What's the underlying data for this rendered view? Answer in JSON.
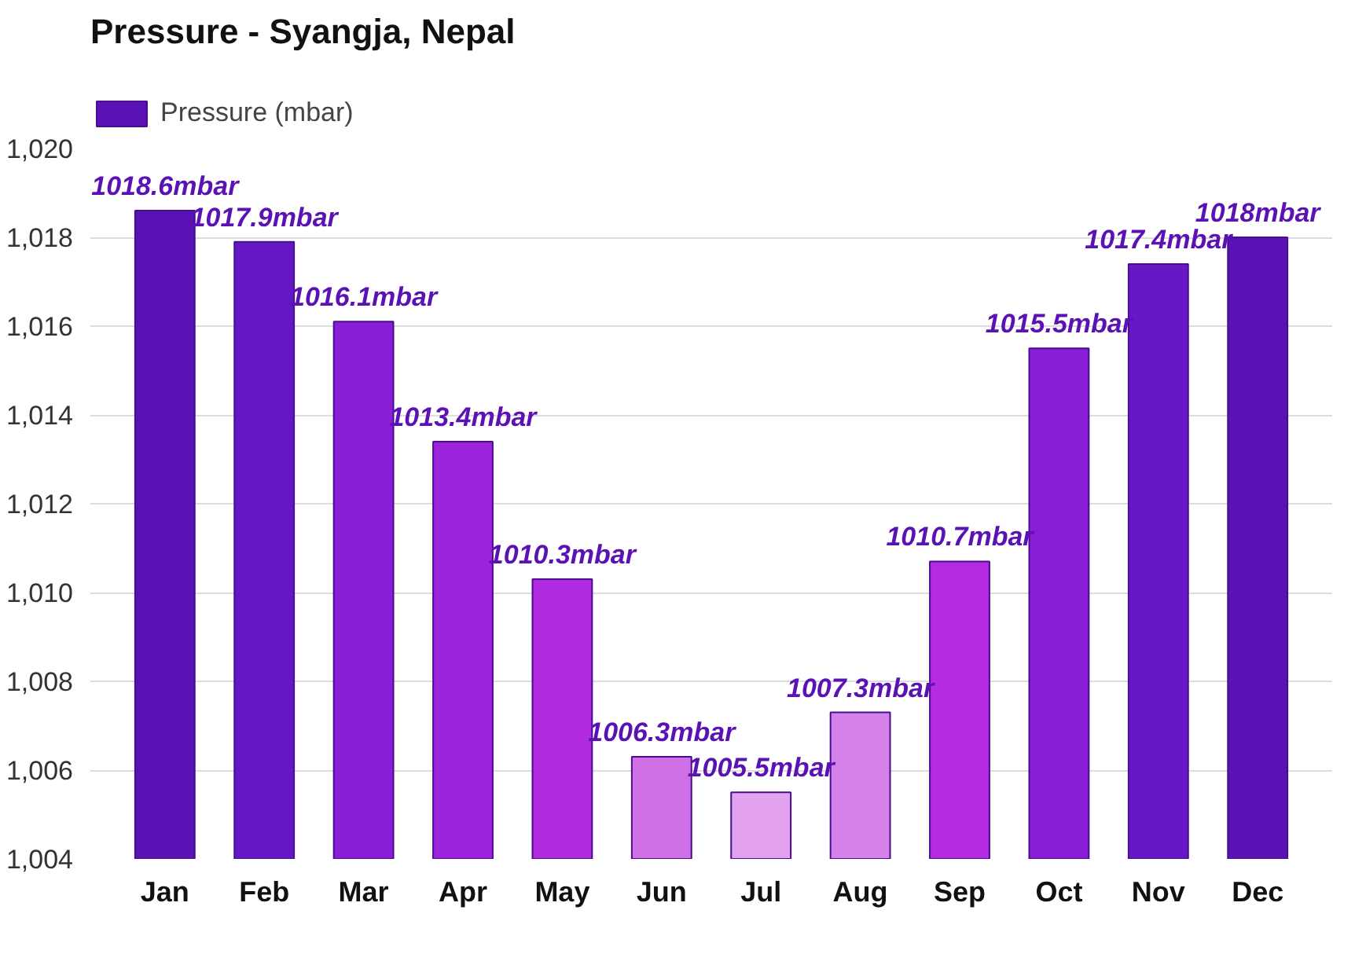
{
  "chart_data": {
    "type": "bar",
    "title": "Pressure - Syangja, Nepal",
    "categories": [
      "Jan",
      "Feb",
      "Mar",
      "Apr",
      "May",
      "Jun",
      "Jul",
      "Aug",
      "Sep",
      "Oct",
      "Nov",
      "Dec"
    ],
    "series": [
      {
        "name": "Pressure (mbar)",
        "color": "#5a12b4",
        "values": [
          1018.6,
          1017.9,
          1016.1,
          1013.4,
          1010.3,
          1006.3,
          1005.5,
          1007.3,
          1010.7,
          1015.5,
          1017.4,
          1018.0
        ],
        "colors": [
          "#5a12b4",
          "#6418c4",
          "#8a1ed8",
          "#9c22dc",
          "#b02ae0",
          "#d070e6",
          "#e2a2f0",
          "#d482ea",
          "#b42ce2",
          "#8a1ed8",
          "#6618c6",
          "#5a12b4"
        ],
        "value_labels": [
          "1018.6mbar",
          "1017.9mbar",
          "1016.1mbar",
          "1013.4mbar",
          "1010.3mbar",
          "1006.3mbar",
          "1005.5mbar",
          "1007.3mbar",
          "1010.7mbar",
          "1015.5mbar",
          "1017.4mbar",
          "1018mbar"
        ]
      }
    ],
    "ylim": [
      1004,
      1020
    ],
    "yticks": [
      {
        "value": 1004,
        "label": "1,004"
      },
      {
        "value": 1006,
        "label": "1,006"
      },
      {
        "value": 1008,
        "label": "1,008"
      },
      {
        "value": 1010,
        "label": "1,010"
      },
      {
        "value": 1012,
        "label": "1,012"
      },
      {
        "value": 1014,
        "label": "1,014"
      },
      {
        "value": 1016,
        "label": "1,016"
      },
      {
        "value": 1018,
        "label": "1,018"
      },
      {
        "value": 1020,
        "label": "1,020"
      }
    ],
    "grid": "y",
    "legend": "top left"
  }
}
